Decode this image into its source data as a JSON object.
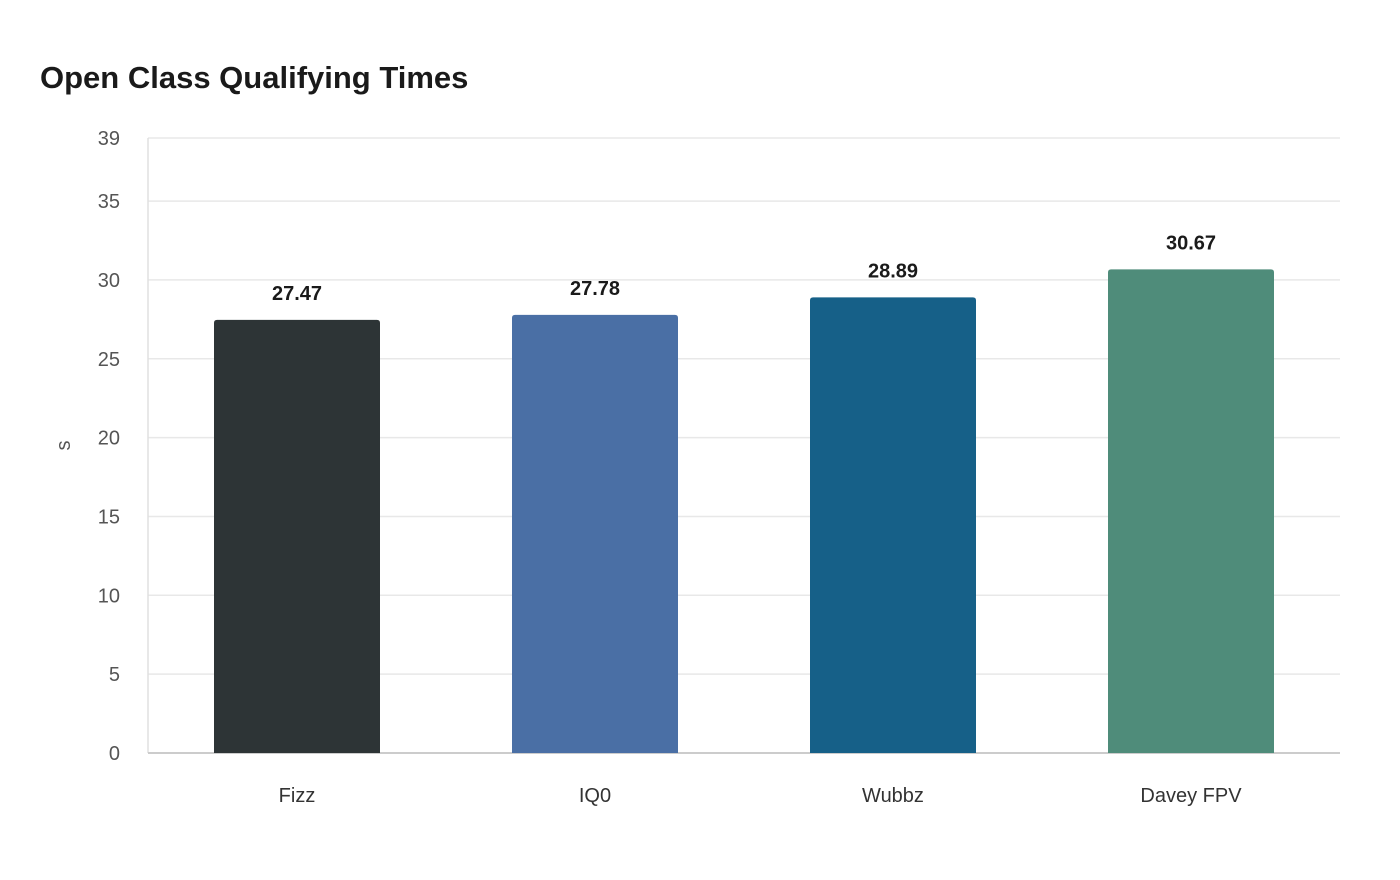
{
  "chart_data": {
    "type": "bar",
    "title": "Open Class Qualifying Times",
    "xlabel": "",
    "ylabel": "s",
    "categories": [
      "Fizz",
      "IQ0",
      "Wubbz",
      "Davey FPV"
    ],
    "values": [
      27.47,
      27.78,
      28.89,
      30.67
    ],
    "value_labels": [
      "27.47",
      "27.78",
      "28.89",
      "30.67"
    ],
    "colors": [
      "#2d3436",
      "#4a6fa5",
      "#166088",
      "#4f8c7a"
    ],
    "ylim": [
      0,
      39
    ],
    "yticks": [
      0,
      5,
      10,
      15,
      20,
      25,
      30,
      35,
      39
    ],
    "grid": true,
    "legend": "none"
  }
}
